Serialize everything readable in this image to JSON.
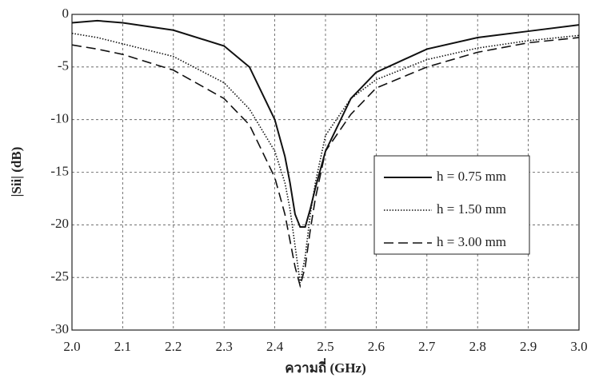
{
  "chart_data": {
    "type": "line",
    "xlabel": "ความถี่ (GHz)",
    "ylabel": "|Sii| (dB)",
    "x": [
      2.0,
      2.05,
      2.1,
      2.2,
      2.3,
      2.35,
      2.4,
      2.42,
      2.43,
      2.44,
      2.45,
      2.46,
      2.47,
      2.48,
      2.5,
      2.55,
      2.6,
      2.7,
      2.8,
      2.9,
      3.0
    ],
    "series": [
      {
        "name": "h = 0.75 mm",
        "color": "#111111",
        "line_style": "solid",
        "values": [
          -0.8,
          -0.6,
          -0.8,
          -1.5,
          -3.0,
          -5.0,
          -10,
          -13.5,
          -16,
          -19,
          -20.2,
          -20.2,
          -18.5,
          -16.5,
          -13,
          -8,
          -5.5,
          -3.3,
          -2.2,
          -1.6,
          -1.0
        ]
      },
      {
        "name": "h = 1.50 mm",
        "color": "#111111",
        "line_style": "dotted",
        "values": [
          -1.8,
          -2.2,
          -2.8,
          -4,
          -6.5,
          -9,
          -13,
          -16,
          -18.5,
          -22,
          -25.5,
          -23,
          -19,
          -16,
          -11.5,
          -8,
          -6.2,
          -4.3,
          -3.2,
          -2.5,
          -2.0
        ]
      },
      {
        "name": "h = 3.00 mm",
        "color": "#111111",
        "line_style": "dashed",
        "values": [
          -2.9,
          -3.3,
          -3.8,
          -5.3,
          -8,
          -10.5,
          -15.5,
          -19,
          -21.5,
          -24,
          -25.8,
          -24,
          -20.5,
          -17.5,
          -13,
          -9.5,
          -7,
          -5,
          -3.6,
          -2.7,
          -2.2
        ]
      }
    ],
    "xlim": [
      2.0,
      3.0
    ],
    "xticks": [
      {
        "value": 2,
        "label": "2.0"
      },
      2.1,
      2.2,
      2.3,
      2.4,
      2.5,
      2.6,
      2.7,
      2.8,
      2.9,
      {
        "value": 3,
        "label": "3.0"
      }
    ],
    "ylim": [
      -30,
      0
    ],
    "yticks": [
      0,
      -5,
      -10,
      -15,
      -20,
      -25,
      -30
    ],
    "grid": true
  }
}
